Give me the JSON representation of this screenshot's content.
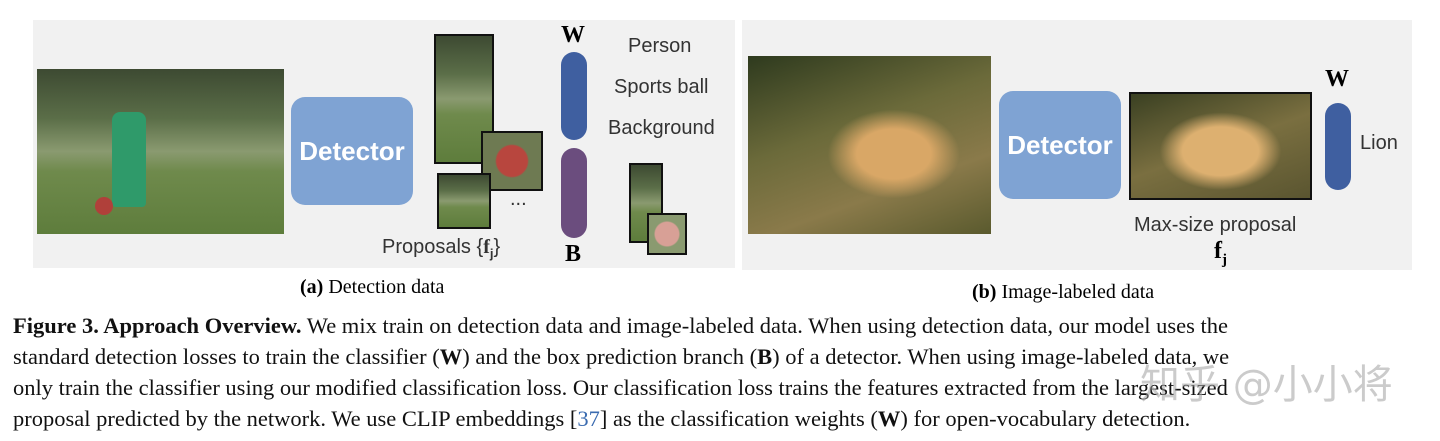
{
  "panel_a": {
    "detector": "Detector",
    "proposals": "Proposals",
    "f_sym": "f",
    "f_sub": "j",
    "ellipsis": "...",
    "W": "W",
    "B": "B",
    "labels": [
      "Person",
      "Sports ball",
      "Background"
    ],
    "caption_tag": "(a)",
    "caption": " Detection data"
  },
  "panel_b": {
    "detector": "Detector",
    "W": "W",
    "label": "Lion",
    "proposal": "Max-size proposal",
    "f_sym": "f",
    "f_sub": "j",
    "caption_tag": "(b)",
    "caption": " Image-labeled data"
  },
  "caption": {
    "lead": "Figure 3. Approach Overview.",
    "lines": [
      " We mix train on detection data and image-labeled data. When using detection data, our model uses the",
      "standard detection losses to train the classifier (",
      "W",
      ") and the box prediction branch (",
      "B",
      ") of a detector. When using image-labeled data, we",
      "only train the classifier using our modified classification loss. Our classification loss trains the features extracted from the largest-sized",
      "proposal predicted by the network. We use CLIP embeddings [",
      "37",
      "] as the classification weights (",
      "W",
      ") for open-vocabulary detection."
    ]
  },
  "watermark": "知乎 @小小将",
  "colors": {
    "detector": "#7fa3d3",
    "W_bar": "#3f5fa0",
    "B_bar": "#6b4d7e",
    "citation": "#3a6bb0"
  }
}
